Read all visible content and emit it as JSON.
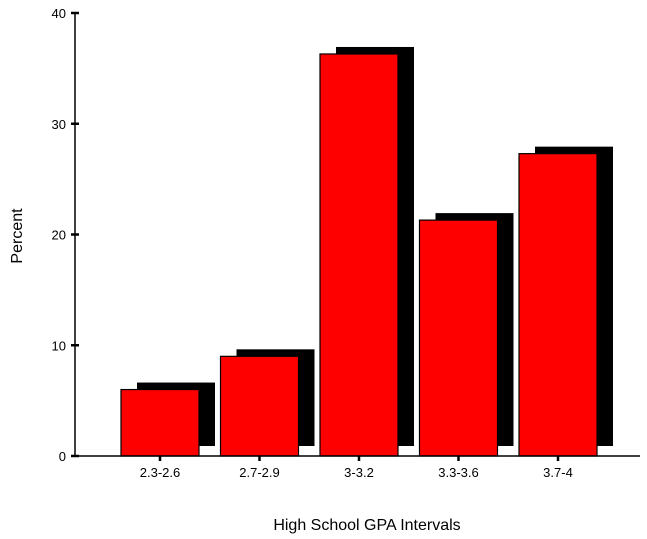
{
  "chart_data": {
    "type": "bar",
    "title": "",
    "xlabel": "High School GPA Intervals",
    "ylabel": "Percent",
    "categories": [
      "2.3-2.6",
      "2.7-2.9",
      "3-3.2",
      "3.3-3.6",
      "3.7-4"
    ],
    "values": [
      6.0,
      9.0,
      36.3,
      21.3,
      27.3
    ],
    "ylim": [
      0,
      40
    ],
    "yticks": [
      0,
      10,
      20,
      30,
      40
    ],
    "grid": false,
    "legend": "none",
    "bar_color": "#ff0000",
    "shadow_color": "#000000"
  }
}
